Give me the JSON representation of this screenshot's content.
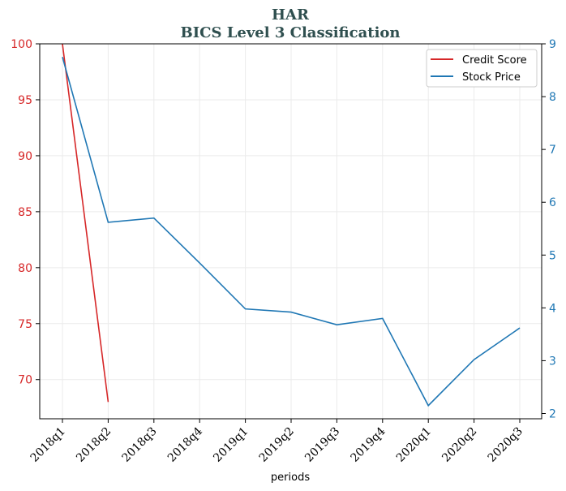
{
  "chart_data": {
    "type": "line",
    "title": "HAR",
    "subtitle": "BICS Level 3 Classification",
    "xlabel": "periods",
    "ylabel": "",
    "categories": [
      "2018q1",
      "2018q2",
      "2018q3",
      "2018q4",
      "2019q1",
      "2019q2",
      "2019q3",
      "2019q4",
      "2020q1",
      "2020q2",
      "2020q3"
    ],
    "y_left": {
      "ylim": [
        66.5,
        100
      ],
      "ticks": [
        70,
        75,
        80,
        85,
        90,
        95,
        100
      ],
      "color": "#d62728"
    },
    "y_right": {
      "ylim": [
        1.9,
        9
      ],
      "ticks": [
        2,
        3,
        4,
        5,
        6,
        7,
        8,
        9
      ],
      "color": "#1f77b4"
    },
    "grid": true,
    "legend_position": "top-right",
    "series": [
      {
        "name": "Credit Score",
        "axis": "left",
        "color": "#d62728",
        "values": [
          100,
          68,
          null,
          null,
          null,
          null,
          null,
          null,
          null,
          null,
          null
        ]
      },
      {
        "name": "Stock Price",
        "axis": "right",
        "color": "#1f77b4",
        "values": [
          8.75,
          5.62,
          5.7,
          4.85,
          3.98,
          3.92,
          3.68,
          3.8,
          2.15,
          3.02,
          3.62
        ]
      }
    ]
  }
}
